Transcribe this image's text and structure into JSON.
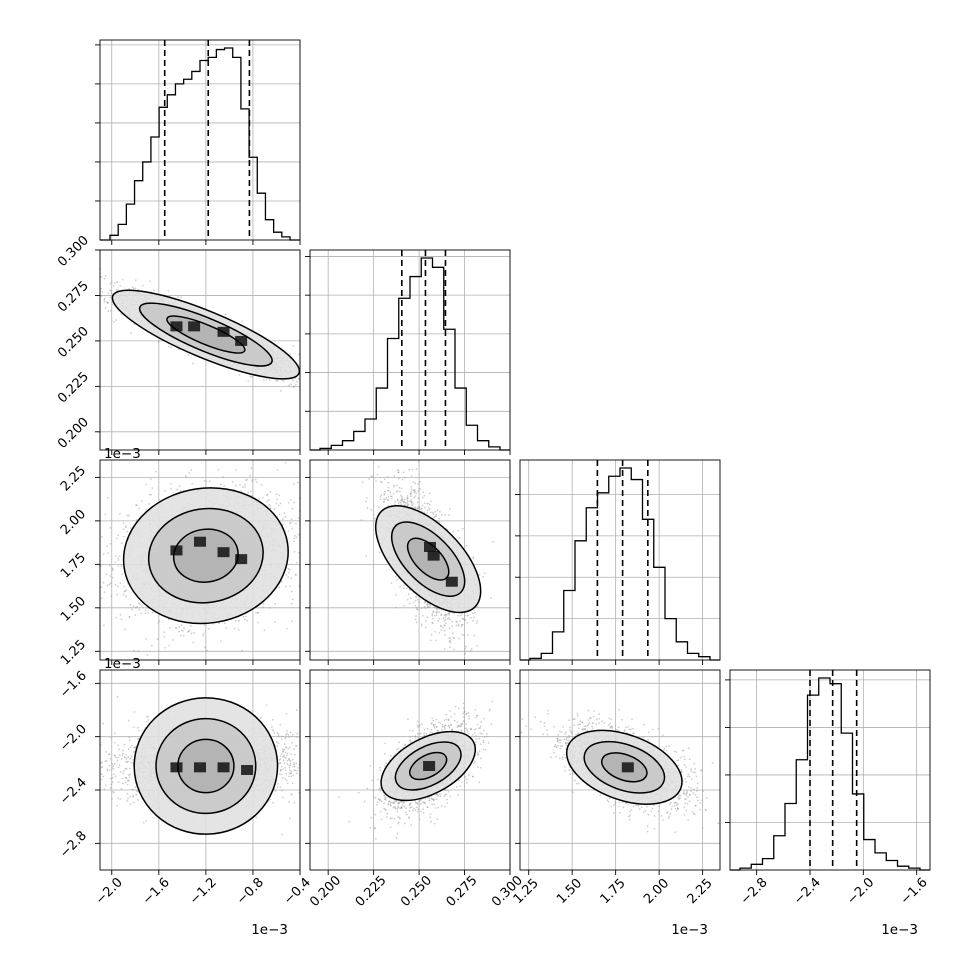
{
  "chart_data": {
    "type": "corner",
    "parameters": [
      {
        "range": [
          -2.1,
          -0.4
        ],
        "ticks": [
          -2.0,
          -1.6,
          -1.2,
          -0.8,
          -0.4
        ],
        "tick_labels": [
          "−2.0",
          "−1.6",
          "−1.2",
          "−0.8",
          "−0.4"
        ],
        "offset_label": "1e−3",
        "quantiles": [
          -1.55,
          -1.18,
          -0.83
        ],
        "hist": [
          3,
          10,
          23,
          38,
          50,
          66,
          85,
          93,
          100,
          103,
          108,
          115,
          117,
          122,
          123,
          117,
          84,
          53,
          30,
          13,
          5,
          2
        ]
      },
      {
        "range": [
          0.19,
          0.3
        ],
        "ticks": [
          0.2,
          0.225,
          0.25,
          0.275,
          0.3
        ],
        "tick_labels": [
          "0.200",
          "0.225",
          "0.250",
          "0.275",
          "0.300"
        ],
        "offset_label": "",
        "quantiles": [
          0.2405,
          0.2535,
          0.2645
        ],
        "hist": [
          1,
          3,
          6,
          12,
          20,
          40,
          72,
          98,
          112,
          124,
          118,
          78,
          40,
          16,
          6,
          2
        ]
      },
      {
        "range": [
          1.2,
          2.35
        ],
        "ticks": [
          1.25,
          1.5,
          1.75,
          2.0,
          2.25
        ],
        "tick_labels": [
          "1.25",
          "1.50",
          "1.75",
          "2.00",
          "2.25"
        ],
        "offset_label": "1e−3",
        "quantiles": [
          1.645,
          1.79,
          1.935
        ],
        "hist": [
          1,
          4,
          17,
          42,
          72,
          92,
          101,
          111,
          116,
          109,
          85,
          56,
          25,
          11,
          4,
          2
        ]
      },
      {
        "range": [
          -3.0,
          -1.5
        ],
        "ticks": [
          -2.8,
          -2.4,
          -2.0,
          -1.6
        ],
        "tick_labels": [
          "−2.8",
          "−2.4",
          "−2.0",
          "−1.6"
        ],
        "offset_label": "1e−3",
        "quantiles": [
          -2.4,
          -2.23,
          -2.05
        ],
        "hist": [
          1,
          3,
          6,
          18,
          35,
          58,
          92,
          101,
          98,
          72,
          40,
          16,
          9,
          5,
          2,
          1
        ]
      }
    ],
    "pairs": [
      {
        "row": 1,
        "col": 0,
        "center": [
          -1.2,
          0.2535
        ],
        "sd": [
          0.35,
          0.0105
        ],
        "rho": -0.9,
        "levels": [
          1.0,
          1.7,
          2.4
        ],
        "dark_cells": [
          [
            -1.45,
            0.258
          ],
          [
            -1.3,
            0.258
          ],
          [
            -1.05,
            0.255
          ],
          [
            -0.9,
            0.25
          ]
        ]
      },
      {
        "row": 2,
        "col": 0,
        "center": [
          -1.2,
          1.8
        ],
        "sd": [
          0.33,
          0.17
        ],
        "rho": 0.2,
        "levels": [
          0.9,
          1.6,
          2.3
        ],
        "dark_cells": [
          [
            -1.45,
            1.83
          ],
          [
            -1.25,
            1.88
          ],
          [
            -1.05,
            1.82
          ],
          [
            -0.9,
            1.78
          ]
        ]
      },
      {
        "row": 2,
        "col": 1,
        "center": [
          0.255,
          1.78
        ],
        "sd": [
          0.0095,
          0.17
        ],
        "rho": -0.6,
        "levels": [
          0.9,
          1.6,
          2.3
        ],
        "dark_cells": [
          [
            0.256,
            1.85
          ],
          [
            0.258,
            1.8
          ],
          [
            0.268,
            1.65
          ]
        ]
      },
      {
        "row": 3,
        "col": 0,
        "center": [
          -1.2,
          -2.22
        ],
        "sd": [
          0.36,
          0.12
        ],
        "rho": 0.05,
        "levels": [
          0.9,
          1.6,
          2.3
        ],
        "dark_cells": [
          [
            -1.45,
            -2.23
          ],
          [
            -1.25,
            -2.23
          ],
          [
            -1.05,
            -2.23
          ],
          [
            -0.85,
            -2.25
          ]
        ]
      },
      {
        "row": 3,
        "col": 1,
        "center": [
          0.255,
          -2.22
        ],
        "sd": [
          0.0105,
          0.14
        ],
        "rho": 0.55,
        "levels": [
          0.9,
          1.6,
          2.3
        ],
        "dark_cells": [
          [
            0.2555,
            -2.22
          ]
        ]
      },
      {
        "row": 3,
        "col": 2,
        "center": [
          1.8,
          -2.23
        ],
        "sd": [
          0.15,
          0.13
        ],
        "rho": -0.55,
        "levels": [
          0.9,
          1.6,
          2.3
        ],
        "dark_cells": [
          [
            1.82,
            -2.23
          ]
        ]
      }
    ],
    "grid": true,
    "quantile_lines": "dashed"
  },
  "colors": {
    "ink": "#000000",
    "grid": "#b0b0b0",
    "scatter": "#a0a0a0",
    "density": "#6a6a6a"
  }
}
